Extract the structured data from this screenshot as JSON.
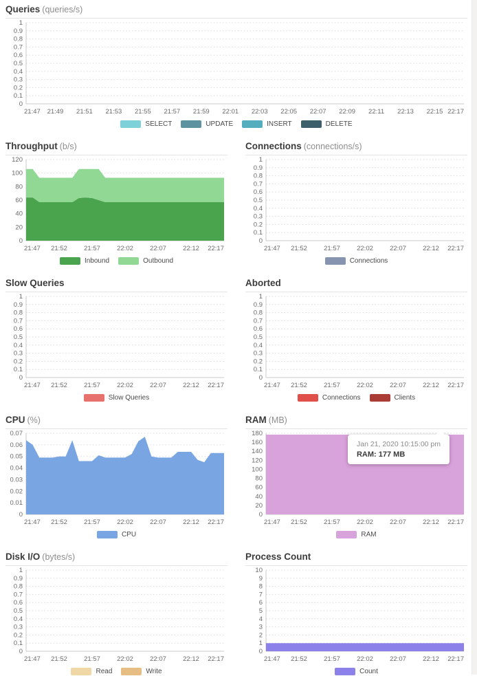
{
  "x_axis_full": [
    "21:47",
    "21:49",
    "21:51",
    "21:53",
    "21:55",
    "21:57",
    "21:59",
    "22:01",
    "22:03",
    "22:05",
    "22:07",
    "22:09",
    "22:11",
    "22:13",
    "22:15",
    "22:17"
  ],
  "x_axis_half": [
    "21:47",
    "21:52",
    "21:57",
    "22:02",
    "22:07",
    "22:12",
    "22:17"
  ],
  "chart_data": [
    {
      "id": "queries",
      "type": "area",
      "title": "Queries",
      "unit": "(queries/s)",
      "full_width": true,
      "y_max": 1,
      "y_ticks": [
        "1",
        "0.9",
        "0.8",
        "0.7",
        "0.6",
        "0.5",
        "0.4",
        "0.3",
        "0.2",
        "0.1",
        "0"
      ],
      "x_labels": [
        "21:47",
        "21:49",
        "21:51",
        "21:53",
        "21:55",
        "21:57",
        "21:59",
        "22:01",
        "22:03",
        "22:05",
        "22:07",
        "22:09",
        "22:11",
        "22:13",
        "22:15",
        "22:17"
      ],
      "grid": true,
      "legend_position": "bottom",
      "series": [
        {
          "name": "SELECT",
          "color": "#7fd1d9",
          "values": []
        },
        {
          "name": "UPDATE",
          "color": "#5d93a1",
          "values": []
        },
        {
          "name": "INSERT",
          "color": "#55aebd",
          "values": []
        },
        {
          "name": "DELETE",
          "color": "#3d5f6b",
          "values": []
        }
      ]
    },
    {
      "id": "throughput",
      "type": "area",
      "title": "Throughput",
      "unit": "(b/s)",
      "full_width": false,
      "y_max": 120,
      "y_ticks": [
        "120",
        "100",
        "80",
        "60",
        "40",
        "20",
        "0"
      ],
      "x_labels": [
        "21:47",
        "21:52",
        "21:57",
        "22:02",
        "22:07",
        "22:12",
        "22:17"
      ],
      "grid": true,
      "legend_position": "bottom",
      "stacked": true,
      "series": [
        {
          "name": "Inbound",
          "color": "#4aa44d",
          "values": [
            64,
            64,
            57,
            57,
            57,
            57,
            57,
            57,
            63,
            64,
            63,
            60,
            57,
            57,
            57,
            57,
            57,
            57,
            57,
            57,
            57,
            57,
            57,
            57,
            57,
            57,
            57,
            57,
            57,
            57,
            57
          ]
        },
        {
          "name": "Outbound",
          "color": "#90d893",
          "values": [
            42,
            42,
            36,
            36,
            36,
            36,
            36,
            36,
            43,
            42,
            43,
            46,
            36,
            36,
            36,
            36,
            36,
            36,
            36,
            36,
            36,
            36,
            36,
            36,
            36,
            36,
            36,
            36,
            36,
            36,
            36
          ]
        }
      ]
    },
    {
      "id": "connections",
      "type": "area",
      "title": "Connections",
      "unit": "(connections/s)",
      "full_width": false,
      "y_max": 1,
      "y_ticks": [
        "1",
        "0.9",
        "0.8",
        "0.7",
        "0.6",
        "0.5",
        "0.4",
        "0.3",
        "0.2",
        "0.1",
        "0"
      ],
      "x_labels": [
        "21:47",
        "21:52",
        "21:57",
        "22:02",
        "22:07",
        "22:12",
        "22:17"
      ],
      "grid": true,
      "legend_position": "bottom",
      "series": [
        {
          "name": "Connections",
          "color": "#8694b0",
          "values": []
        }
      ]
    },
    {
      "id": "slow-queries",
      "type": "area",
      "title": "Slow Queries",
      "unit": "",
      "full_width": false,
      "y_max": 1,
      "y_ticks": [
        "1",
        "0.9",
        "0.8",
        "0.7",
        "0.6",
        "0.5",
        "0.4",
        "0.3",
        "0.2",
        "0.1",
        "0"
      ],
      "x_labels": [
        "21:47",
        "21:52",
        "21:57",
        "22:02",
        "22:07",
        "22:12",
        "22:17"
      ],
      "grid": true,
      "legend_position": "bottom",
      "series": [
        {
          "name": "Slow Queries",
          "color": "#e7716c",
          "values": []
        }
      ]
    },
    {
      "id": "aborted",
      "type": "area",
      "title": "Aborted",
      "unit": "",
      "full_width": false,
      "y_max": 1,
      "y_ticks": [
        "1",
        "0.9",
        "0.8",
        "0.7",
        "0.6",
        "0.5",
        "0.4",
        "0.3",
        "0.2",
        "0.1",
        "0"
      ],
      "x_labels": [
        "21:47",
        "21:52",
        "21:57",
        "22:02",
        "22:07",
        "22:12",
        "22:17"
      ],
      "grid": true,
      "legend_position": "bottom",
      "series": [
        {
          "name": "Connections",
          "color": "#e04f4a",
          "values": []
        },
        {
          "name": "Clients",
          "color": "#aa3c36",
          "values": []
        }
      ]
    },
    {
      "id": "cpu",
      "type": "area",
      "title": "CPU",
      "unit": "(%)",
      "full_width": false,
      "y_max": 0.07,
      "y_ticks": [
        "0.07",
        "0.06",
        "0.05",
        "0.04",
        "0.03",
        "0.02",
        "0.01",
        "0"
      ],
      "x_labels": [
        "21:47",
        "21:52",
        "21:57",
        "22:02",
        "22:07",
        "22:12",
        "22:17"
      ],
      "grid": true,
      "legend_position": "bottom",
      "series": [
        {
          "name": "CPU",
          "color": "#79a6e3",
          "values": [
            0.064,
            0.06,
            0.049,
            0.049,
            0.049,
            0.05,
            0.05,
            0.064,
            0.046,
            0.046,
            0.046,
            0.051,
            0.049,
            0.049,
            0.049,
            0.049,
            0.052,
            0.063,
            0.067,
            0.05,
            0.049,
            0.049,
            0.049,
            0.054,
            0.054,
            0.054,
            0.047,
            0.045,
            0.053,
            0.053,
            0.053
          ]
        }
      ]
    },
    {
      "id": "ram",
      "type": "area",
      "title": "RAM",
      "unit": "(MB)",
      "full_width": false,
      "y_max": 180,
      "y_ticks": [
        "180",
        "160",
        "140",
        "120",
        "100",
        "80",
        "60",
        "40",
        "20",
        "0"
      ],
      "x_labels": [
        "21:47",
        "21:52",
        "21:57",
        "22:02",
        "22:07",
        "22:12",
        "22:17"
      ],
      "grid": true,
      "legend_position": "bottom",
      "series": [
        {
          "name": "RAM",
          "color": "#d8a2da",
          "values": [
            177,
            177,
            177,
            177,
            177,
            177,
            177,
            177,
            177,
            177,
            177,
            177,
            177,
            177,
            177,
            177,
            177,
            177,
            177,
            177,
            177,
            177,
            177,
            177,
            177,
            177,
            177,
            177,
            177,
            177,
            177
          ]
        }
      ],
      "tooltip": {
        "timestamp": "Jan 21, 2020 10:15:00 pm",
        "value_label": "RAM: 177 MB"
      }
    },
    {
      "id": "disk-io",
      "type": "area",
      "title": "Disk I/O",
      "unit": "(bytes/s)",
      "full_width": false,
      "y_max": 1,
      "y_ticks": [
        "1",
        "0.9",
        "0.8",
        "0.7",
        "0.6",
        "0.5",
        "0.4",
        "0.3",
        "0.2",
        "0.1",
        "0"
      ],
      "x_labels": [
        "21:47",
        "21:52",
        "21:57",
        "22:02",
        "22:07",
        "22:12",
        "22:17"
      ],
      "grid": true,
      "legend_position": "bottom",
      "series": [
        {
          "name": "Read",
          "color": "#efd8a6",
          "values": []
        },
        {
          "name": "Write",
          "color": "#e6bd83",
          "values": []
        }
      ]
    },
    {
      "id": "process-count",
      "type": "area",
      "title": "Process Count",
      "unit": "",
      "full_width": false,
      "y_max": 10,
      "y_ticks": [
        "10",
        "9",
        "8",
        "7",
        "6",
        "5",
        "4",
        "3",
        "2",
        "1",
        "0"
      ],
      "x_labels": [
        "21:47",
        "21:52",
        "21:57",
        "22:02",
        "22:07",
        "22:12",
        "22:17"
      ],
      "grid": true,
      "legend_position": "bottom",
      "series": [
        {
          "name": "Count",
          "color": "#8b81e8",
          "values": [
            1,
            1,
            1,
            1,
            1,
            1,
            1,
            1,
            1,
            1,
            1,
            1,
            1,
            1,
            1,
            1,
            1,
            1,
            1,
            1,
            1,
            1,
            1,
            1,
            1,
            1,
            1,
            1,
            1,
            1,
            1
          ]
        }
      ]
    }
  ]
}
